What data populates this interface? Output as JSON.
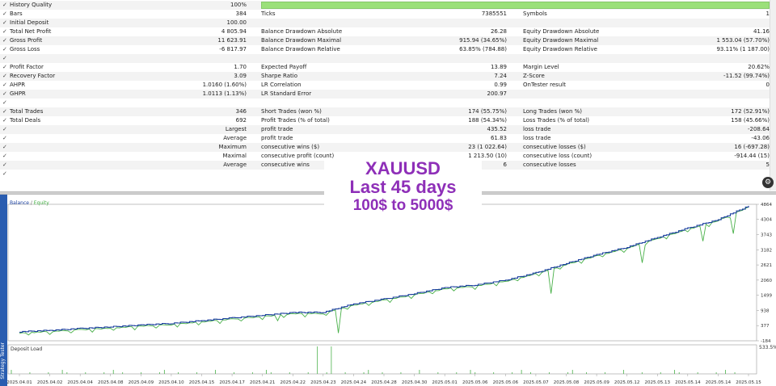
{
  "rows": [
    {
      "c": true,
      "l1": "History Quality",
      "v1": "100%",
      "l2": "",
      "v2": "",
      "l3": "",
      "v3": "",
      "bar": true
    },
    {
      "c": true,
      "l1": "Bars",
      "v1": "384",
      "l2": "Ticks",
      "v2": "7385551",
      "l3": "Symbols",
      "v3": "1"
    },
    {
      "c": true,
      "l1": "Initial Deposit",
      "v1": "100.00",
      "l2": "",
      "v2": "",
      "l3": "",
      "v3": ""
    },
    {
      "c": true,
      "l1": "Total Net Profit",
      "v1": "4 805.94",
      "l2": "Balance Drawdown Absolute",
      "v2": "26.28",
      "l3": "Equity Drawdown Absolute",
      "v3": "41.16"
    },
    {
      "c": true,
      "l1": "Gross Profit",
      "v1": "11 623.91",
      "l2": "Balance Drawdown Maximal",
      "v2": "915.94 (34.65%)",
      "l3": "Equity Drawdown Maximal",
      "v3": "1 553.04 (57.70%)"
    },
    {
      "c": true,
      "l1": "Gross Loss",
      "v1": "-6 817.97",
      "l2": "Balance Drawdown Relative",
      "v2": "63.85% (784.88)",
      "l3": "Equity Drawdown Relative",
      "v3": "93.11% (1 187.00)"
    },
    {
      "c": true,
      "l1": "",
      "v1": "",
      "l2": "",
      "v2": "",
      "l3": "",
      "v3": ""
    },
    {
      "c": true,
      "l1": "Profit Factor",
      "v1": "1.70",
      "l2": "Expected Payoff",
      "v2": "13.89",
      "l3": "Margin Level",
      "v3": "20.62%"
    },
    {
      "c": true,
      "l1": "Recovery Factor",
      "v1": "3.09",
      "l2": "Sharpe Ratio",
      "v2": "7.24",
      "l3": "Z-Score",
      "v3": "-11.52 (99.74%)"
    },
    {
      "c": true,
      "l1": "AHPR",
      "v1": "1.0160 (1.60%)",
      "l2": "LR Correlation",
      "v2": "0.99",
      "l3": "OnTester result",
      "v3": "0"
    },
    {
      "c": true,
      "l1": "GHPR",
      "v1": "1.0113 (1.13%)",
      "l2": "LR Standard Error",
      "v2": "200.97",
      "l3": "",
      "v3": ""
    },
    {
      "c": true,
      "l1": "",
      "v1": "",
      "l2": "",
      "v2": "",
      "l3": "",
      "v3": ""
    },
    {
      "c": true,
      "l1": "Total Trades",
      "v1": "346",
      "l2": "Short Trades (won %)",
      "v2": "174 (55.75%)",
      "l3": "Long Trades (won %)",
      "v3": "172 (52.91%)"
    },
    {
      "c": true,
      "l1": "Total Deals",
      "v1": "692",
      "l2": "Profit Trades (% of total)",
      "v2": "188 (54.34%)",
      "l3": "Loss Trades (% of total)",
      "v3": "158 (45.66%)"
    },
    {
      "c": true,
      "l1": "",
      "v1": "Largest",
      "l2": "profit trade",
      "v2": "435.52",
      "l3": "loss trade",
      "v3": "-208.64"
    },
    {
      "c": true,
      "l1": "",
      "v1": "Average",
      "l2": "profit trade",
      "v2": "61.83",
      "l3": "loss trade",
      "v3": "-43.06"
    },
    {
      "c": true,
      "l1": "",
      "v1": "Maximum",
      "l2": "consecutive wins ($)",
      "v2": "23 (1 022.64)",
      "l3": "consecutive losses ($)",
      "v3": "16 (-697.28)"
    },
    {
      "c": true,
      "l1": "",
      "v1": "Maximal",
      "l2": "consecutive profit (count)",
      "v2": "1 213.50 (10)",
      "l3": "consecutive loss (count)",
      "v3": "-914.44 (15)"
    },
    {
      "c": true,
      "l1": "",
      "v1": "Average",
      "l2": "consecutive wins",
      "v2": "6",
      "l3": "consecutive losses",
      "v3": "5"
    },
    {
      "c": true,
      "l1": "",
      "v1": "",
      "l2": "",
      "v2": "",
      "l3": "",
      "v3": ""
    }
  ],
  "overlay": {
    "line1": "XAUUSD",
    "line2": "Last 45 days",
    "line3": "100$ to 5000$"
  },
  "legend": {
    "balance": "Balance",
    "sep": " / ",
    "equity": "Equity"
  },
  "tester_tab": "Strategy Tester",
  "gear_icon": "gear-icon",
  "chart_data": {
    "type": "line",
    "series": [
      {
        "name": "Balance",
        "color": "#1a3f9e"
      },
      {
        "name": "Equity",
        "color": "#48b048"
      }
    ],
    "y_ticks": [
      "4864",
      "4304",
      "3743",
      "3182",
      "2621",
      "2060",
      "1499",
      "938",
      "377",
      "-184"
    ],
    "ylim": [
      -184,
      4864
    ],
    "x": [
      "2025.04.01",
      "2025.04.02",
      "2025.04.04",
      "2025.04.08",
      "2025.04.09",
      "2025.04.10",
      "2025.04.15",
      "2025.04.17",
      "2025.04.21",
      "2025.04.22",
      "2025.04.23",
      "2025.04.24",
      "2025.04.28",
      "2025.04.30",
      "2025.05.01",
      "2025.05.06",
      "2025.05.06",
      "2025.05.07",
      "2025.05.08",
      "2025.05.09",
      "2025.05.12",
      "2025.05.13",
      "2025.05.14",
      "2025.05.14",
      "2025.05.15"
    ],
    "balance": [
      150,
      200,
      270,
      330,
      400,
      460,
      560,
      660,
      760,
      860,
      870,
      1180,
      1360,
      1560,
      1780,
      1880,
      2060,
      2330,
      2680,
      3000,
      3280,
      3640,
      3980,
      4300,
      4806
    ],
    "equity_dips": [
      {
        "i": 10,
        "v": 100
      },
      {
        "i": 8,
        "v": 560
      },
      {
        "i": 17,
        "v": 1560
      },
      {
        "i": 20,
        "v": 2700
      },
      {
        "i": 22,
        "v": 3500
      },
      {
        "i": 23,
        "v": 3780
      }
    ],
    "deposit_load": {
      "title": "Deposit Load",
      "max_label": "533.5%",
      "peak_index": 10,
      "peak_value": 533.5
    }
  }
}
